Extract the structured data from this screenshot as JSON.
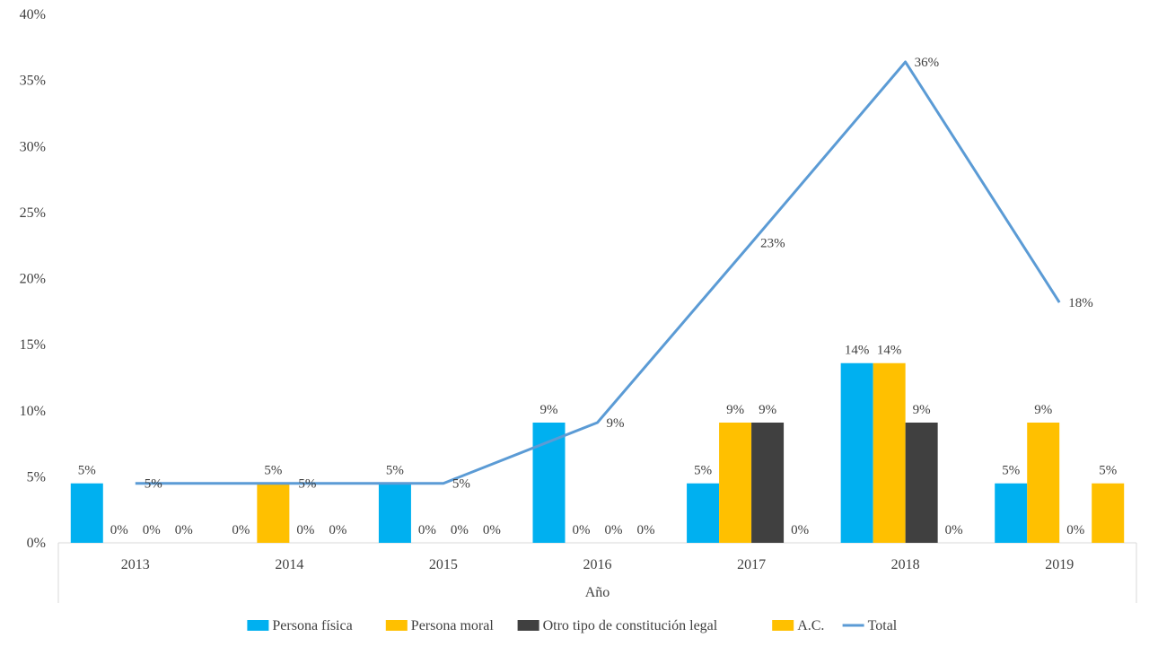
{
  "chart_data": {
    "type": "bar",
    "title": "",
    "xlabel": "Año",
    "ylabel": "",
    "ylim": [
      0,
      40
    ],
    "yticks": [
      "0%",
      "5%",
      "10%",
      "15%",
      "20%",
      "25%",
      "30%",
      "35%",
      "40%"
    ],
    "ytick_values": [
      0,
      5,
      10,
      15,
      20,
      25,
      30,
      35,
      40
    ],
    "categories": [
      "2013",
      "2014",
      "2015",
      "2016",
      "2017",
      "2018",
      "2019"
    ],
    "series": [
      {
        "name": "Persona física",
        "kind": "bar",
        "color": "#00B0F0",
        "values": [
          4.5,
          0,
          4.5,
          9.1,
          4.5,
          13.6,
          4.5
        ],
        "labels": [
          "5%",
          "0%",
          "5%",
          "9%",
          "5%",
          "14%",
          "5%"
        ]
      },
      {
        "name": "Persona moral",
        "kind": "bar",
        "color": "#FFC000",
        "values": [
          0,
          4.5,
          0,
          0,
          9.1,
          13.6,
          9.1
        ],
        "labels": [
          "0%",
          "5%",
          "0%",
          "0%",
          "9%",
          "14%",
          "9%"
        ]
      },
      {
        "name": "Otro tipo de constitución legal",
        "kind": "bar",
        "color": "#404040",
        "values": [
          0,
          0,
          0,
          0,
          9.1,
          9.1,
          0
        ],
        "labels": [
          "0%",
          "0%",
          "0%",
          "0%",
          "9%",
          "9%",
          "0%"
        ]
      },
      {
        "name": "A.C.",
        "kind": "bar",
        "color": "#FFC000",
        "values": [
          0,
          0,
          0,
          0,
          0,
          0,
          4.5
        ],
        "labels": [
          "0%",
          "0%",
          "0%",
          "0%",
          "0%",
          "0%",
          "5%"
        ]
      },
      {
        "name": "Total",
        "kind": "line",
        "color": "#5B9BD5",
        "values": [
          4.5,
          4.5,
          4.5,
          9.1,
          22.7,
          36.4,
          18.2
        ],
        "labels": [
          "5%",
          "5%",
          "5%",
          "9%",
          "23%",
          "36%",
          "18%"
        ]
      }
    ],
    "grid": false,
    "legend_position": "bottom"
  }
}
